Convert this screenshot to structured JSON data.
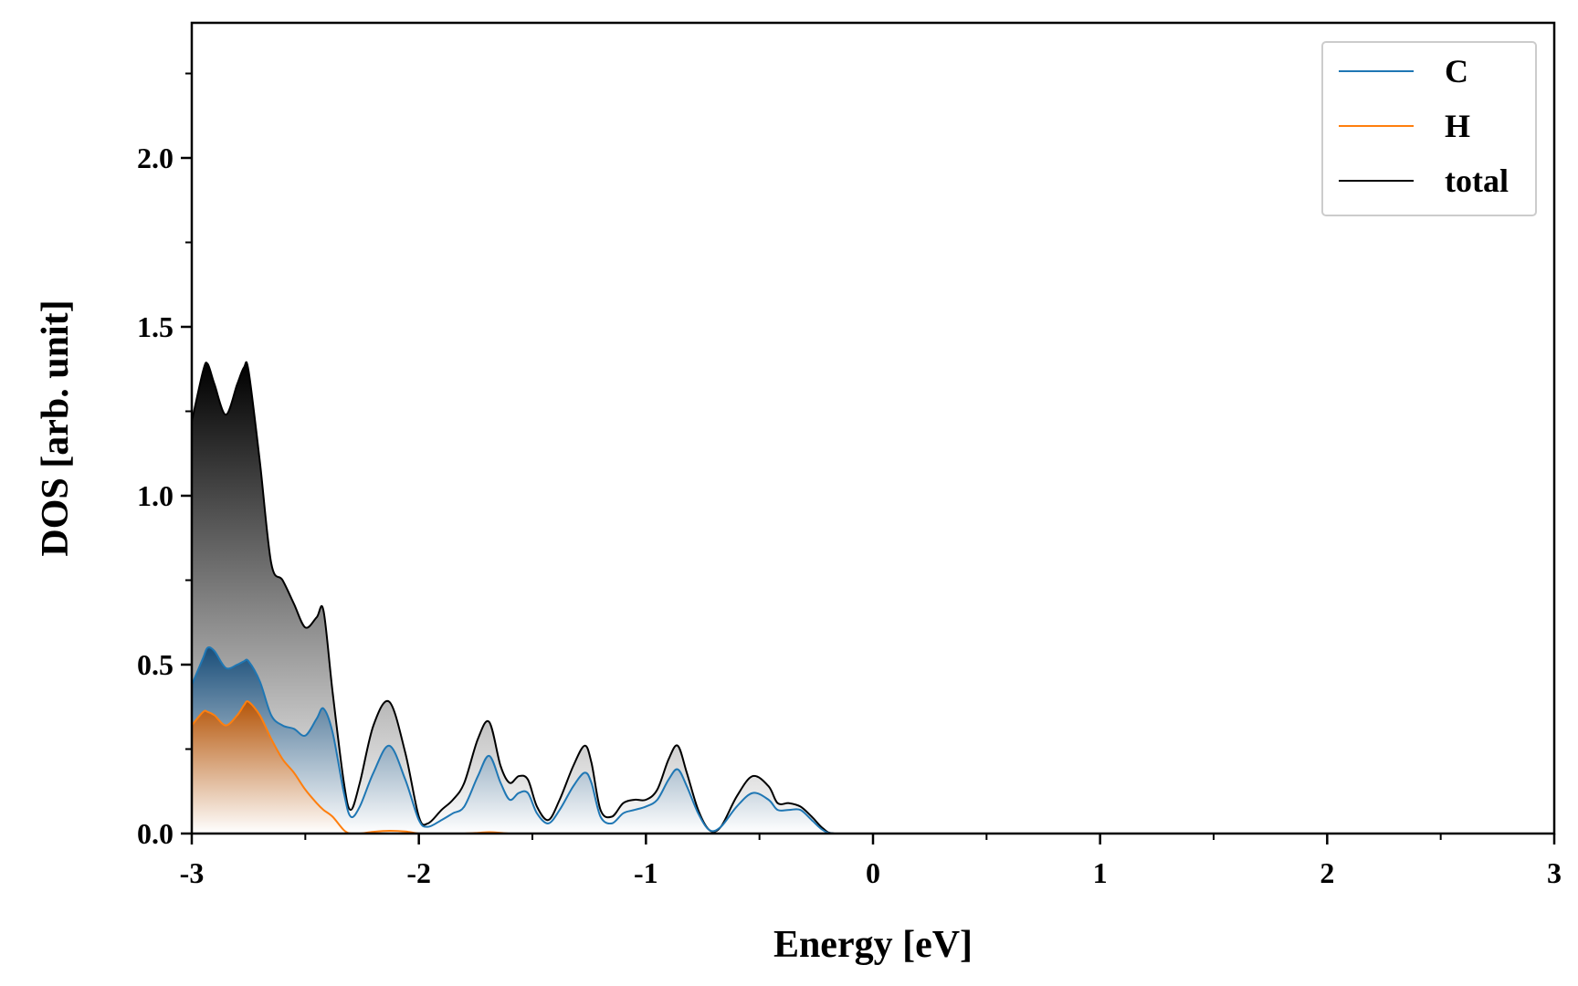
{
  "chart_data": {
    "type": "area",
    "title": "",
    "xlabel": "Energy [eV]",
    "ylabel": "DOS [arb. unit]",
    "xlim": [
      -3,
      3
    ],
    "ylim": [
      0,
      2.4
    ],
    "x_ticks": [
      -3,
      -2,
      -1,
      0,
      1,
      2,
      3
    ],
    "x_tick_labels": [
      "-3",
      "-2",
      "-1",
      "0",
      "1",
      "2",
      "3"
    ],
    "x_minor_step": 0.5,
    "y_ticks": [
      0.0,
      0.5,
      1.0,
      1.5,
      2.0
    ],
    "y_tick_labels": [
      "0.0",
      "0.5",
      "1.0",
      "1.5",
      "2.0"
    ],
    "y_minor_step": 0.25,
    "grid": false,
    "legend_position": "top-right",
    "x": [
      -3.0,
      -2.95,
      -2.93,
      -2.9,
      -2.85,
      -2.8,
      -2.77,
      -2.75,
      -2.7,
      -2.65,
      -2.6,
      -2.55,
      -2.5,
      -2.45,
      -2.42,
      -2.38,
      -2.33,
      -2.3,
      -2.26,
      -2.2,
      -2.13,
      -2.06,
      -2.0,
      -1.96,
      -1.9,
      -1.85,
      -1.8,
      -1.74,
      -1.69,
      -1.64,
      -1.6,
      -1.56,
      -1.52,
      -1.48,
      -1.43,
      -1.38,
      -1.32,
      -1.27,
      -1.24,
      -1.2,
      -1.15,
      -1.1,
      -1.05,
      -1.0,
      -0.95,
      -0.9,
      -0.86,
      -0.82,
      -0.77,
      -0.72,
      -0.67,
      -0.6,
      -0.53,
      -0.46,
      -0.42,
      -0.37,
      -0.32,
      -0.27,
      -0.22,
      -0.17,
      0.0,
      3.0
    ],
    "series": [
      {
        "name": "C",
        "color": "#1f77b4",
        "values": [
          0.44,
          0.52,
          0.55,
          0.54,
          0.49,
          0.5,
          0.51,
          0.51,
          0.45,
          0.35,
          0.32,
          0.31,
          0.29,
          0.34,
          0.37,
          0.3,
          0.12,
          0.05,
          0.08,
          0.18,
          0.26,
          0.16,
          0.04,
          0.02,
          0.04,
          0.06,
          0.08,
          0.17,
          0.23,
          0.15,
          0.1,
          0.12,
          0.12,
          0.06,
          0.03,
          0.07,
          0.14,
          0.18,
          0.15,
          0.05,
          0.03,
          0.06,
          0.07,
          0.08,
          0.1,
          0.16,
          0.19,
          0.14,
          0.06,
          0.01,
          0.02,
          0.08,
          0.12,
          0.1,
          0.07,
          0.07,
          0.07,
          0.04,
          0.01,
          0.0,
          0.0,
          0.0
        ]
      },
      {
        "name": "H",
        "color": "#ff7f0e",
        "values": [
          0.32,
          0.36,
          0.36,
          0.35,
          0.32,
          0.35,
          0.38,
          0.39,
          0.35,
          0.28,
          0.22,
          0.18,
          0.13,
          0.09,
          0.07,
          0.05,
          0.01,
          0.0,
          0.0,
          0.005,
          0.008,
          0.006,
          0.0,
          0.0,
          0.0,
          0.0,
          0.0,
          0.002,
          0.004,
          0.002,
          0.0,
          0.0,
          0.0,
          0.0,
          0.0,
          0.0,
          0.0,
          0.0,
          0.0,
          0.0,
          0.0,
          0.0,
          0.0,
          0.0,
          0.0,
          0.0,
          0.0,
          0.0,
          0.0,
          0.0,
          0.0,
          0.0,
          0.0,
          0.0,
          0.0,
          0.0,
          0.0,
          0.0,
          0.0,
          0.0,
          0.0,
          0.0
        ]
      },
      {
        "name": "total",
        "color": "#000000",
        "values": [
          1.22,
          1.37,
          1.39,
          1.33,
          1.24,
          1.33,
          1.38,
          1.37,
          1.1,
          0.8,
          0.75,
          0.68,
          0.61,
          0.64,
          0.66,
          0.42,
          0.15,
          0.07,
          0.15,
          0.32,
          0.39,
          0.24,
          0.05,
          0.03,
          0.07,
          0.1,
          0.15,
          0.28,
          0.33,
          0.2,
          0.15,
          0.17,
          0.16,
          0.08,
          0.04,
          0.1,
          0.2,
          0.26,
          0.21,
          0.07,
          0.05,
          0.09,
          0.1,
          0.1,
          0.13,
          0.22,
          0.26,
          0.18,
          0.07,
          0.01,
          0.02,
          0.11,
          0.17,
          0.14,
          0.09,
          0.09,
          0.08,
          0.05,
          0.015,
          0.0,
          0.0,
          0.0
        ]
      }
    ],
    "fills": [
      {
        "series": "total",
        "top_color": "#000000",
        "bottom_color": "#ffffff"
      },
      {
        "series": "C",
        "top_color": "#1b4f7a",
        "bottom_color": "#ffffff"
      },
      {
        "series": "H",
        "top_color": "#b5560a",
        "bottom_color": "#ffffff"
      }
    ]
  }
}
